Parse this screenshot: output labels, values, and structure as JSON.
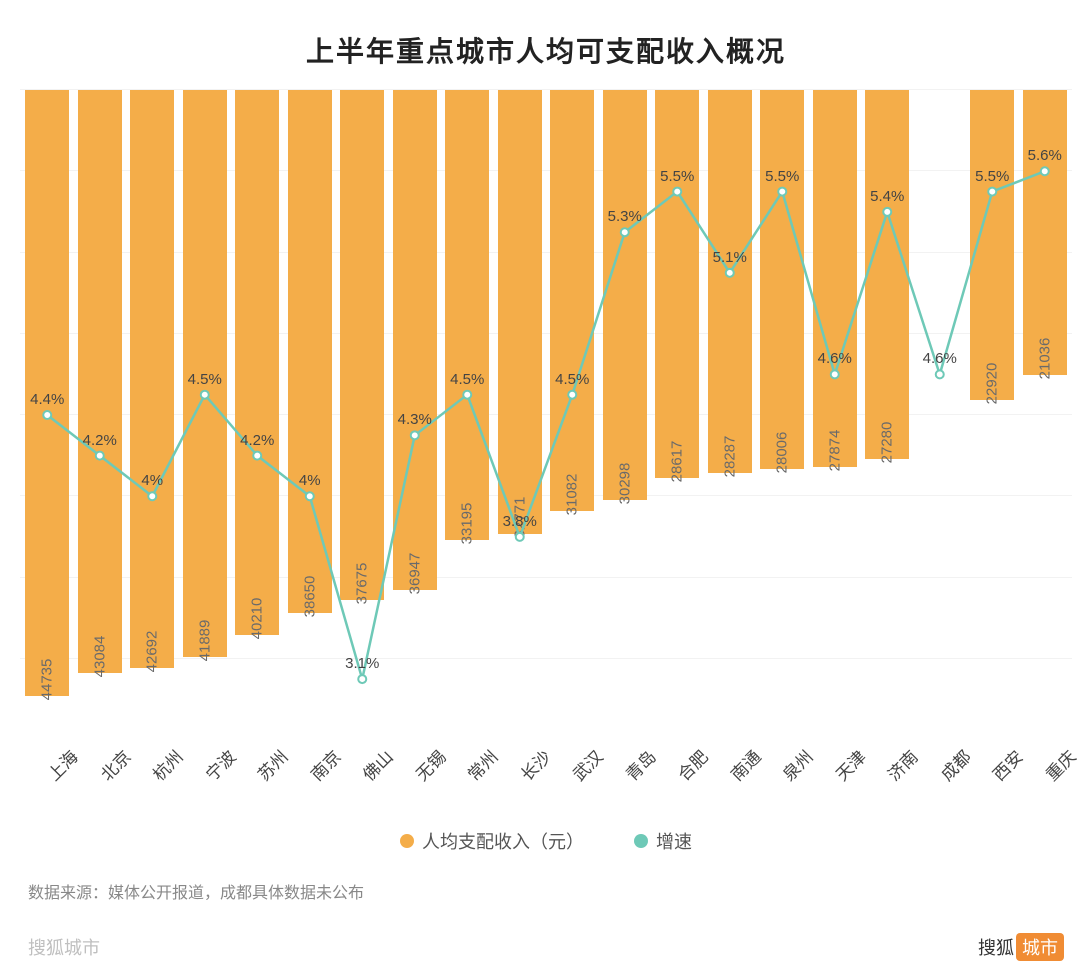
{
  "title": "上半年重点城市人均可支配收入概况",
  "chart": {
    "type": "bar+line",
    "bar_color": "#f4ad49",
    "line_color": "#6ec9b7",
    "point_fill": "#ffffff",
    "point_stroke": "#6ec9b7",
    "grid_color": "#f2f2f2",
    "background_color": "#ffffff",
    "title_fontsize": 28,
    "label_fontsize": 17,
    "value_fontsize": 15,
    "bar_ymax": 48000,
    "bar_ymin": 0,
    "line_ymax": 6.0,
    "line_ymin": 2.8,
    "grid_count": 8,
    "line_width": 2.5,
    "point_radius": 4,
    "categories": [
      "上海",
      "北京",
      "杭州",
      "宁波",
      "苏州",
      "南京",
      "佛山",
      "无锡",
      "常州",
      "长沙",
      "武汉",
      "青岛",
      "合肥",
      "南通",
      "泉州",
      "天津",
      "济南",
      "成都",
      "西安",
      "重庆"
    ],
    "bar_values": [
      44735,
      43084,
      42692,
      41889,
      40210,
      38650,
      37675,
      36947,
      33195,
      32771,
      31082,
      30298,
      28617,
      28287,
      28006,
      27874,
      27280,
      null,
      22920,
      21036
    ],
    "line_values": [
      4.4,
      4.2,
      4.0,
      4.5,
      4.2,
      4.0,
      3.1,
      4.3,
      4.5,
      3.8,
      4.5,
      5.3,
      5.5,
      5.1,
      5.5,
      4.6,
      5.4,
      4.6,
      5.5,
      5.6
    ],
    "line_labels": [
      "4.4%",
      "4.2%",
      "4%",
      "4.5%",
      "4.2%",
      "4%",
      "3.1%",
      "4.3%",
      "4.5%",
      "3.8%",
      "4.5%",
      "5.3%",
      "5.5%",
      "5.1%",
      "5.5%",
      "4.6%",
      "5.4%",
      "4.6%",
      "5.5%",
      "5.6%"
    ]
  },
  "legend": {
    "bar_label": "人均支配收入（元）",
    "line_label": "增速"
  },
  "source_note": "数据来源：媒体公开报道，成都具体数据未公布",
  "footer": {
    "left": "搜狐城市",
    "logo_text": "搜狐",
    "badge": "城市"
  }
}
